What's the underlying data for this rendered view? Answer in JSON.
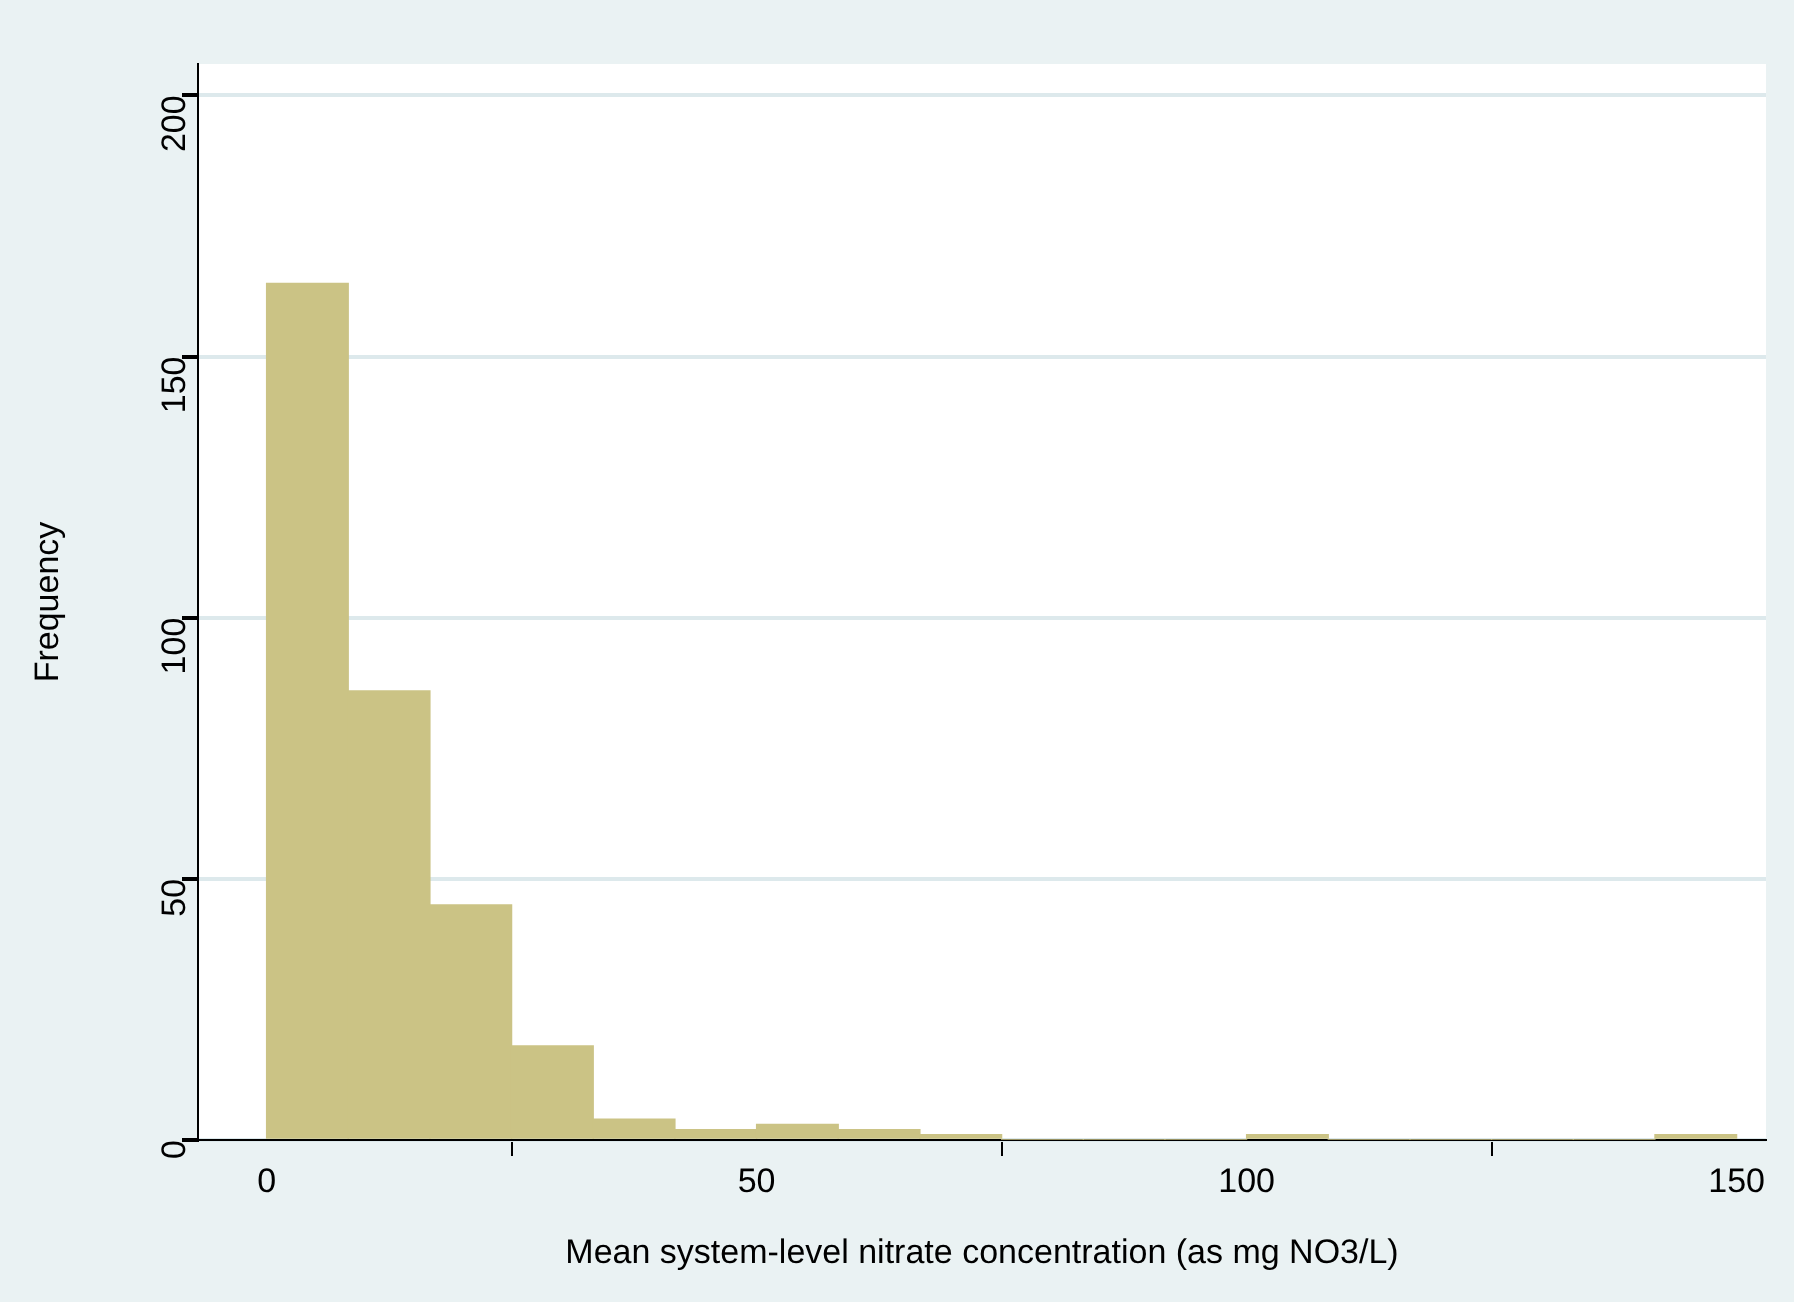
{
  "chart_data": {
    "type": "histogram",
    "xlabel": "Mean system-level nitrate concentration (as mg NO3/L)",
    "ylabel": "Frequency",
    "bins": [
      0,
      8.33,
      16.67,
      25,
      33.33,
      41.67,
      50,
      58.33,
      66.67,
      75,
      83.33,
      91.67,
      100,
      108.33,
      116.67,
      125,
      133.33,
      141.67,
      150
    ],
    "values": [
      164,
      86,
      45,
      18,
      4,
      2,
      3,
      2,
      1,
      0,
      0,
      0,
      1,
      0,
      0,
      0,
      0,
      1
    ],
    "color": "#cbc385",
    "xlim": [
      -7,
      153
    ],
    "xticks": [
      0,
      50,
      100,
      150
    ],
    "ylim": [
      0,
      206
    ],
    "yticks": [
      0,
      50,
      100,
      150,
      200
    ],
    "grid": "y"
  }
}
